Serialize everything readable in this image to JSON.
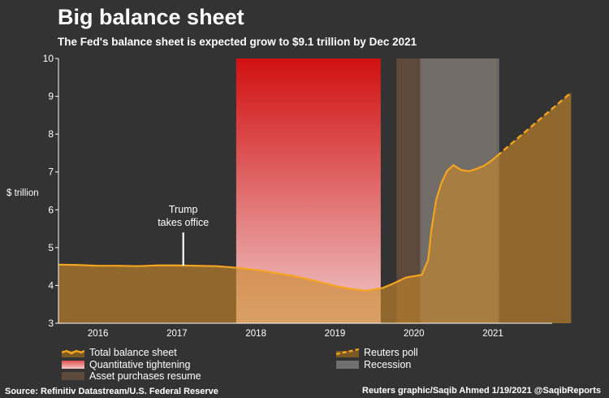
{
  "header": {
    "title": "Big balance sheet",
    "subtitle": "The Fed's balance sheet is expected grow to $9.1 trillion by Dec 2021"
  },
  "chart_data": {
    "type": "area",
    "ylabel": "$ trillion",
    "ylim": [
      3,
      10
    ],
    "yticks": [
      "3",
      "4",
      "5",
      "6",
      "7",
      "8",
      "9",
      "10"
    ],
    "xlim": [
      2015.5,
      2021.75
    ],
    "xticks": [
      {
        "label": "2016",
        "x": 2016
      },
      {
        "label": "2017",
        "x": 2017
      },
      {
        "label": "2018",
        "x": 2018
      },
      {
        "label": "2019",
        "x": 2019
      },
      {
        "label": "2020",
        "x": 2020
      },
      {
        "label": "2021",
        "x": 2021
      }
    ],
    "series": [
      {
        "name": "Total balance sheet",
        "color": "#f5a41f",
        "style": "solid",
        "points": [
          [
            2015.5,
            4.55
          ],
          [
            2015.75,
            4.54
          ],
          [
            2016.0,
            4.52
          ],
          [
            2016.25,
            4.52
          ],
          [
            2016.5,
            4.51
          ],
          [
            2016.75,
            4.53
          ],
          [
            2017.0,
            4.53
          ],
          [
            2017.25,
            4.52
          ],
          [
            2017.5,
            4.51
          ],
          [
            2017.75,
            4.47
          ],
          [
            2018.0,
            4.41
          ],
          [
            2018.25,
            4.33
          ],
          [
            2018.5,
            4.24
          ],
          [
            2018.75,
            4.12
          ],
          [
            2019.0,
            3.99
          ],
          [
            2019.2,
            3.91
          ],
          [
            2019.4,
            3.86
          ],
          [
            2019.6,
            3.93
          ],
          [
            2019.75,
            4.06
          ],
          [
            2019.9,
            4.21
          ],
          [
            2020.1,
            4.28
          ],
          [
            2020.18,
            4.67
          ],
          [
            2020.22,
            5.45
          ],
          [
            2020.28,
            6.25
          ],
          [
            2020.35,
            6.72
          ],
          [
            2020.42,
            7.03
          ],
          [
            2020.5,
            7.18
          ],
          [
            2020.6,
            7.05
          ],
          [
            2020.7,
            7.02
          ],
          [
            2020.8,
            7.09
          ],
          [
            2020.9,
            7.18
          ],
          [
            2021.0,
            7.33
          ],
          [
            2021.05,
            7.42
          ]
        ]
      },
      {
        "name": "Reuters poll",
        "color": "#f5a41f",
        "style": "dashed",
        "points": [
          [
            2021.05,
            7.42
          ],
          [
            2021.99,
            9.1
          ]
        ]
      }
    ],
    "shaded_regions": [
      {
        "name": "Quantitative tightening",
        "x": [
          2017.75,
          2019.58
        ],
        "color": "#d01a1a"
      },
      {
        "name": "Asset purchases resume",
        "x": [
          2019.78,
          2021.05
        ],
        "color": "#6e5440"
      },
      {
        "name": "Recession",
        "x": [
          2020.08,
          2021.08
        ],
        "color": "#8a8a8a"
      }
    ],
    "annotations": [
      {
        "text": "Trump takes office",
        "line1": "Trump",
        "line2": "takes office",
        "x": 2017.08,
        "y_from": 4.52,
        "y_to": 5.4
      }
    ]
  },
  "legend": {
    "items": [
      {
        "label": "Total balance sheet",
        "key": "line"
      },
      {
        "label": "Quantitative tightening",
        "key": "gradient"
      },
      {
        "label": "Asset purchases resume",
        "key": "brown"
      },
      {
        "label": "Reuters poll",
        "key": "dashed"
      },
      {
        "label": "Recession",
        "key": "gray"
      }
    ]
  },
  "footer": {
    "source": "Source: Refinitiv Datastream/U.S. Federal Reserve",
    "credit": "Reuters graphic/Saqib Ahmed 1/19/2021 @SaqibReports"
  }
}
